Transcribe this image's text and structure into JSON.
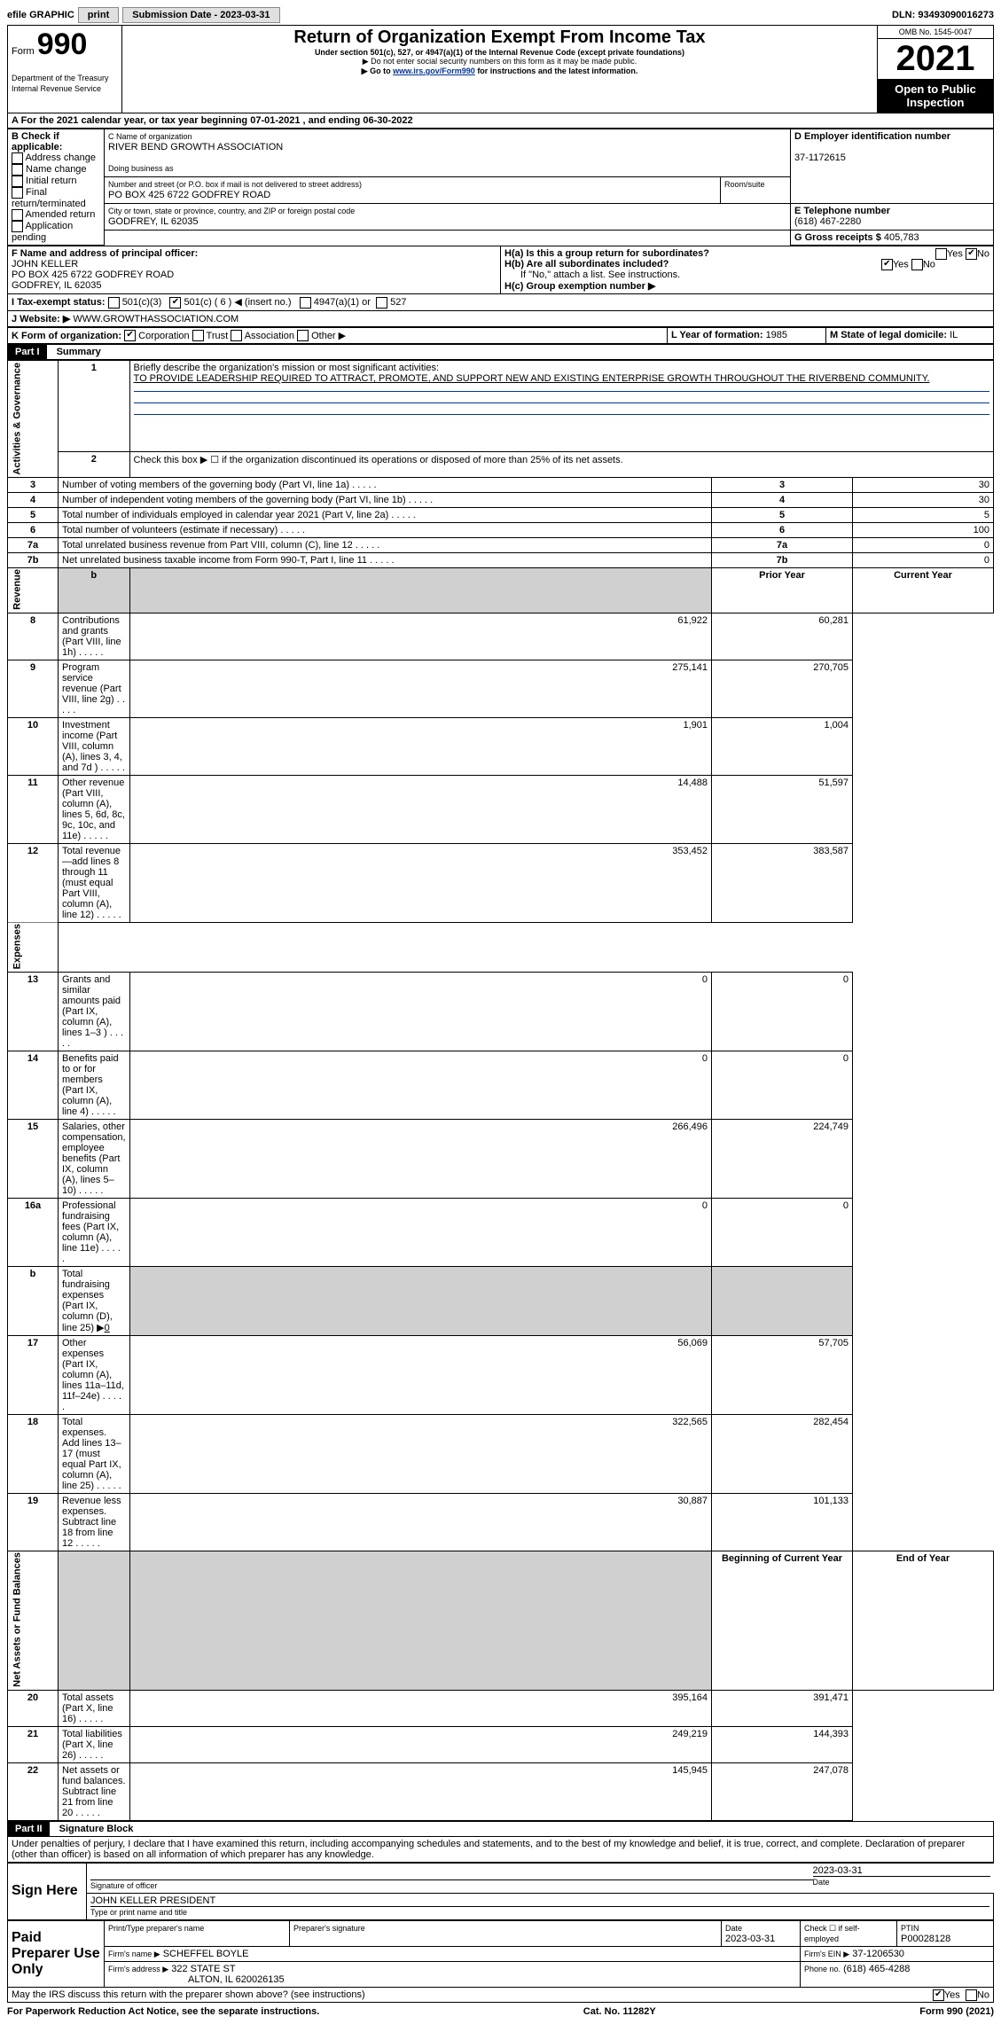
{
  "top": {
    "efile_label": "efile GRAPHIC",
    "print_btn": "print",
    "submission_label": "Submission Date - 2023-03-31",
    "dln_label": "DLN: 93493090016273"
  },
  "header": {
    "form_label": "Form",
    "form_number": "990",
    "dept": "Department of the Treasury Internal Revenue Service",
    "title": "Return of Organization Exempt From Income Tax",
    "subtitle": "Under section 501(c), 527, or 4947(a)(1) of the Internal Revenue Code (except private foundations)",
    "note1": "▶ Do not enter social security numbers on this form as it may be made public.",
    "note2_pre": "▶ Go to ",
    "note2_link": "www.irs.gov/Form990",
    "note2_post": " for instructions and the latest information.",
    "omb": "OMB No. 1545-0047",
    "year": "2021",
    "public": "Open to Public Inspection"
  },
  "section_a": {
    "a_label": "A For the 2021 calendar year, or tax year beginning ",
    "begin": "07-01-2021",
    "mid": " , and ending ",
    "end": "06-30-2022",
    "b_label": "B Check if applicable:",
    "checks": [
      "Address change",
      "Name change",
      "Initial return",
      "Final return/terminated",
      "Amended return",
      "Application pending"
    ],
    "c_label": "C Name of organization",
    "org_name": "RIVER BEND GROWTH ASSOCIATION",
    "dba_label": "Doing business as",
    "street_label": "Number and street (or P.O. box if mail is not delivered to street address)",
    "street": "PO BOX 425 6722 GODFREY ROAD",
    "room_label": "Room/suite",
    "city_label": "City or town, state or province, country, and ZIP or foreign postal code",
    "city": "GODFREY, IL  62035",
    "d_label": "D Employer identification number",
    "ein": "37-1172615",
    "e_label": "E Telephone number",
    "phone": "(618) 467-2280",
    "g_label": "G Gross receipts $ ",
    "g_val": "405,783",
    "f_label": "F Name and address of principal officer:",
    "officer_name": "JOHN KELLER",
    "officer_addr1": "PO BOX 425 6722 GODFREY ROAD",
    "officer_addr2": "GODFREY, IL  62035",
    "ha_label": "H(a) Is this a group return for subordinates?",
    "hb_label": "H(b) Are all subordinates included?",
    "hb_note": "If \"No,\" attach a list. See instructions.",
    "hc_label": "H(c) Group exemption number ▶",
    "i_label": "I Tax-exempt status:",
    "i_501c3": "501(c)(3)",
    "i_501c": "501(c) ( 6 ) ◀ (insert no.)",
    "i_4947": "4947(a)(1) or",
    "i_527": "527",
    "j_label": "J Website: ▶",
    "website": "WWW.GROWTHASSOCIATION.COM",
    "k_label": "K Form of organization:",
    "k_opts": [
      "Corporation",
      "Trust",
      "Association",
      "Other ▶"
    ],
    "l_label": "L Year of formation: ",
    "l_val": "1985",
    "m_label": "M State of legal domicile: ",
    "m_val": "IL"
  },
  "part1": {
    "header": "Part I",
    "title": "Summary",
    "side_ag": "Activities & Governance",
    "side_rev": "Revenue",
    "side_exp": "Expenses",
    "side_net": "Net Assets or Fund Balances",
    "line1_label": "Briefly describe the organization's mission or most significant activities:",
    "line1_text": "TO PROVIDE LEADERSHIP REQUIRED TO ATTRACT, PROMOTE, AND SUPPORT NEW AND EXISTING ENTERPRISE GROWTH THROUGHOUT THE RIVERBEND COMMUNITY.",
    "line2": "Check this box ▶ ☐ if the organization discontinued its operations or disposed of more than 25% of its net assets.",
    "rows_ag": [
      {
        "n": "3",
        "label": "Number of voting members of the governing body (Part VI, line 1a)",
        "val": "30"
      },
      {
        "n": "4",
        "label": "Number of independent voting members of the governing body (Part VI, line 1b)",
        "val": "30"
      },
      {
        "n": "5",
        "label": "Total number of individuals employed in calendar year 2021 (Part V, line 2a)",
        "val": "5"
      },
      {
        "n": "6",
        "label": "Total number of volunteers (estimate if necessary)",
        "val": "100"
      },
      {
        "n": "7a",
        "label": "Total unrelated business revenue from Part VIII, column (C), line 12",
        "val": "0"
      },
      {
        "n": "7b",
        "label": "Net unrelated business taxable income from Form 990-T, Part I, line 11",
        "val": "0"
      }
    ],
    "py_label": "Prior Year",
    "cy_label": "Current Year",
    "rows_rev": [
      {
        "n": "8",
        "label": "Contributions and grants (Part VIII, line 1h)",
        "py": "61,922",
        "cy": "60,281"
      },
      {
        "n": "9",
        "label": "Program service revenue (Part VIII, line 2g)",
        "py": "275,141",
        "cy": "270,705"
      },
      {
        "n": "10",
        "label": "Investment income (Part VIII, column (A), lines 3, 4, and 7d )",
        "py": "1,901",
        "cy": "1,004"
      },
      {
        "n": "11",
        "label": "Other revenue (Part VIII, column (A), lines 5, 6d, 8c, 9c, 10c, and 11e)",
        "py": "14,488",
        "cy": "51,597"
      },
      {
        "n": "12",
        "label": "Total revenue—add lines 8 through 11 (must equal Part VIII, column (A), line 12)",
        "py": "353,452",
        "cy": "383,587"
      }
    ],
    "rows_exp": [
      {
        "n": "13",
        "label": "Grants and similar amounts paid (Part IX, column (A), lines 1–3 )",
        "py": "0",
        "cy": "0"
      },
      {
        "n": "14",
        "label": "Benefits paid to or for members (Part IX, column (A), line 4)",
        "py": "0",
        "cy": "0"
      },
      {
        "n": "15",
        "label": "Salaries, other compensation, employee benefits (Part IX, column (A), lines 5–10)",
        "py": "266,496",
        "cy": "224,749"
      },
      {
        "n": "16a",
        "label": "Professional fundraising fees (Part IX, column (A), line 11e)",
        "py": "0",
        "cy": "0"
      }
    ],
    "row16b_label": "Total fundraising expenses (Part IX, column (D), line 25) ▶",
    "row16b_val": "0",
    "rows_exp2": [
      {
        "n": "17",
        "label": "Other expenses (Part IX, column (A), lines 11a–11d, 11f–24e)",
        "py": "56,069",
        "cy": "57,705"
      },
      {
        "n": "18",
        "label": "Total expenses. Add lines 13–17 (must equal Part IX, column (A), line 25)",
        "py": "322,565",
        "cy": "282,454"
      },
      {
        "n": "19",
        "label": "Revenue less expenses. Subtract line 18 from line 12",
        "py": "30,887",
        "cy": "101,133"
      }
    ],
    "boy_label": "Beginning of Current Year",
    "eoy_label": "End of Year",
    "rows_net": [
      {
        "n": "20",
        "label": "Total assets (Part X, line 16)",
        "py": "395,164",
        "cy": "391,471"
      },
      {
        "n": "21",
        "label": "Total liabilities (Part X, line 26)",
        "py": "249,219",
        "cy": "144,393"
      },
      {
        "n": "22",
        "label": "Net assets or fund balances. Subtract line 21 from line 20",
        "py": "145,945",
        "cy": "247,078"
      }
    ]
  },
  "part2": {
    "header": "Part II",
    "title": "Signature Block",
    "decl": "Under penalties of perjury, I declare that I have examined this return, including accompanying schedules and statements, and to the best of my knowledge and belief, it is true, correct, and complete. Declaration of preparer (other than officer) is based on all information of which preparer has any knowledge.",
    "sign_here": "Sign Here",
    "sig_officer": "Signature of officer",
    "sig_date": "2023-03-31",
    "sig_date_label": "Date",
    "officer_name": "JOHN KELLER PRESIDENT",
    "type_label": "Type or print name and title",
    "paid_prep": "Paid Preparer Use Only",
    "prep_name_label": "Print/Type preparer's name",
    "prep_sig_label": "Preparer's signature",
    "prep_date_label": "Date",
    "prep_date": "2023-03-31",
    "self_emp": "Check ☐ if self-employed",
    "ptin_label": "PTIN",
    "ptin": "P00028128",
    "firm_name_label": "Firm's name ▶",
    "firm_name": "SCHEFFEL BOYLE",
    "firm_ein_label": "Firm's EIN ▶",
    "firm_ein": "37-1206530",
    "firm_addr_label": "Firm's address ▶",
    "firm_addr1": "322 STATE ST",
    "firm_addr2": "ALTON, IL  620026135",
    "firm_phone_label": "Phone no.",
    "firm_phone": "(618) 465-4288",
    "discuss": "May the IRS discuss this return with the preparer shown above? (see instructions)",
    "yes": "Yes",
    "no": "No"
  },
  "footer": {
    "paperwork": "For Paperwork Reduction Act Notice, see the separate instructions.",
    "cat": "Cat. No. 11282Y",
    "form": "Form 990 (2021)"
  }
}
